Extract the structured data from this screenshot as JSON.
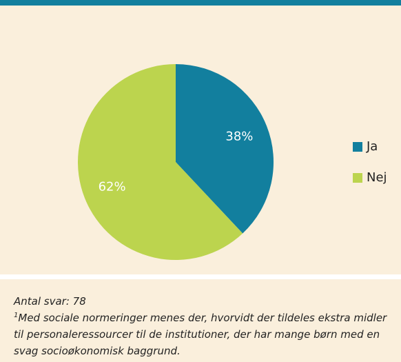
{
  "chart_data": {
    "type": "pie",
    "categories": [
      "Ja",
      "Nej"
    ],
    "values": [
      38,
      62
    ],
    "value_labels": [
      "38%",
      "62%"
    ],
    "colors": [
      "#127f9e",
      "#bcd44e"
    ],
    "legend": "right"
  },
  "footnote": {
    "count": "Antal svar: 78",
    "marker": "1",
    "text": "Med sociale normeringer menes der, hvorvidt der tildeles ekstra midler til personaleressourcer til de institutioner, der har mange børn med en svag socioøkonomisk baggrund."
  }
}
